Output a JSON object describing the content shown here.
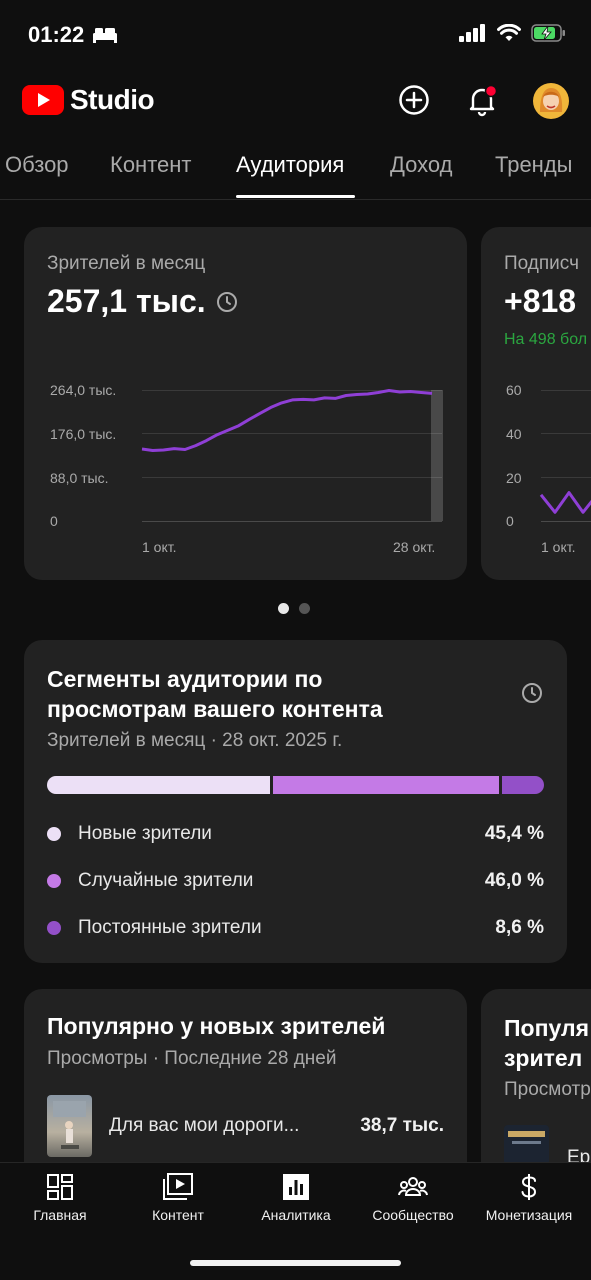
{
  "status_bar": {
    "time": "01:22"
  },
  "header": {
    "logo_text": "Studio"
  },
  "tabs": [
    {
      "label": "Обзор"
    },
    {
      "label": "Контент"
    },
    {
      "label": "Аудитория"
    },
    {
      "label": "Доход"
    },
    {
      "label": "Тренды"
    }
  ],
  "monthly_card": {
    "title": "Зрителей в месяц",
    "value": "257,1 тыс.",
    "y_ticks": [
      "264,0 тыс.",
      "176,0 тыс.",
      "88,0 тыс.",
      "0"
    ],
    "x_ticks": [
      "1 окт.",
      "28 окт."
    ]
  },
  "subs_card": {
    "title": "Подписч",
    "value": "+818",
    "subtitle": "На 498 бол",
    "y_ticks": [
      "60",
      "40",
      "20",
      "0"
    ],
    "x_ticks": [
      "1 окт."
    ]
  },
  "chart_data": [
    {
      "type": "line",
      "title": "Зрителей в месяц",
      "xlabel": "",
      "ylabel": "",
      "ylim": [
        0,
        264000
      ],
      "x_tick_labels": [
        "1 окт.",
        "28 окт."
      ],
      "x": [
        1,
        2,
        3,
        4,
        5,
        6,
        7,
        8,
        9,
        10,
        11,
        12,
        13,
        14,
        15,
        16,
        17,
        18,
        19,
        20,
        21,
        22,
        23,
        24,
        25,
        26,
        27,
        28
      ],
      "series": [
        {
          "values": [
            145000,
            142000,
            143000,
            146000,
            144000,
            152000,
            162000,
            174000,
            183000,
            192000,
            205000,
            217000,
            229000,
            238000,
            244000,
            245000,
            244000,
            248000,
            247000,
            253000,
            255000,
            256000,
            259000,
            263000,
            260000,
            261000,
            259000,
            257100
          ]
        }
      ],
      "grid": true,
      "color": "#8f3fd6"
    },
    {
      "type": "line",
      "title": "Подписч",
      "ylim": [
        0,
        60
      ],
      "x_tick_labels": [
        "1 окт."
      ],
      "x": [
        1,
        2,
        3,
        4,
        5
      ],
      "series": [
        {
          "values": [
            12,
            4,
            13,
            4,
            12
          ]
        }
      ],
      "grid": true,
      "color": "#8f3fd6"
    }
  ],
  "segments_card": {
    "title_line1": "Сегменты аудитории по",
    "title_line2": "просмотрам вашего контента",
    "subtitle": "Зрителей в месяц · 28 окт. 2025 г.",
    "segments": [
      {
        "label": "Новые зрители",
        "value_text": "45,4 %",
        "percent": 45.4,
        "color": "#ece0f6"
      },
      {
        "label": "Случайные зрители",
        "value_text": "46,0 %",
        "percent": 46.0,
        "color": "#c47ae6"
      },
      {
        "label": "Постоянные зрители",
        "value_text": "8,6 %",
        "percent": 8.6,
        "color": "#9350c8"
      }
    ]
  },
  "popular_card": {
    "title": "Популярно у новых зрителей",
    "subtitle": "Просмотры · Последние 28 дней",
    "item_title": "Для вас мои дороги...",
    "item_value": "38,7 тыс."
  },
  "popular_card2": {
    "title_line1": "Популя",
    "title_line2": "зрител",
    "subtitle": "Просмотр",
    "item_title": "Ер"
  },
  "bottom_nav": [
    {
      "label": "Главная",
      "icon": "dashboard-icon"
    },
    {
      "label": "Контент",
      "icon": "content-icon"
    },
    {
      "label": "Аналитика",
      "icon": "analytics-icon"
    },
    {
      "label": "Сообщество",
      "icon": "community-icon"
    },
    {
      "label": "Монетизация",
      "icon": "dollar-icon"
    }
  ]
}
